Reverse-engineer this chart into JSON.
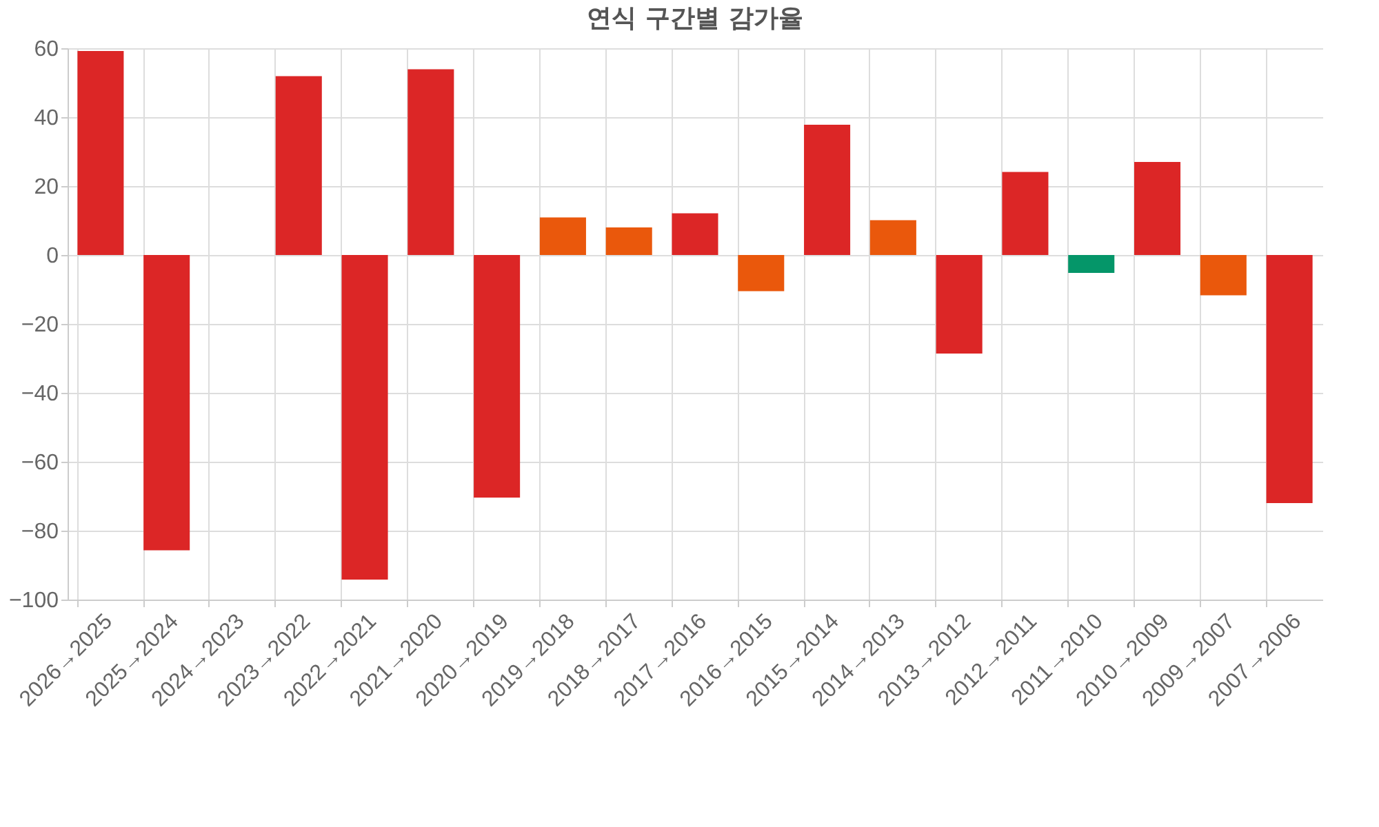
{
  "chart_data": {
    "type": "bar",
    "title": "연식 구간별 감가율",
    "categories": [
      "2026→2025",
      "2025→2024",
      "2024→2023",
      "2023→2022",
      "2022→2021",
      "2021→2020",
      "2020→2019",
      "2019→2018",
      "2018→2017",
      "2017→2016",
      "2016→2015",
      "2015→2014",
      "2014→2013",
      "2013→2012",
      "2012→2011",
      "2011→2010",
      "2010→2009",
      "2009→2007",
      "2007→2006"
    ],
    "values": [
      59.2,
      -85.7,
      0,
      51.9,
      -94.2,
      53.9,
      -70.4,
      10.9,
      8.0,
      12.1,
      -10.5,
      37.8,
      10.1,
      -28.6,
      24.1,
      -5.2,
      27.0,
      -11.7,
      -72.0
    ],
    "colors": [
      "#dc2626",
      "#dc2626",
      "#dc2626",
      "#dc2626",
      "#dc2626",
      "#dc2626",
      "#dc2626",
      "#ea580c",
      "#ea580c",
      "#dc2626",
      "#ea580c",
      "#dc2626",
      "#ea580c",
      "#dc2626",
      "#dc2626",
      "#059669",
      "#dc2626",
      "#ea580c",
      "#dc2626"
    ],
    "ylim": [
      -100,
      60
    ],
    "yticks": [
      -100,
      -80,
      -60,
      -40,
      -20,
      0,
      20,
      40,
      60
    ],
    "grid": true
  }
}
